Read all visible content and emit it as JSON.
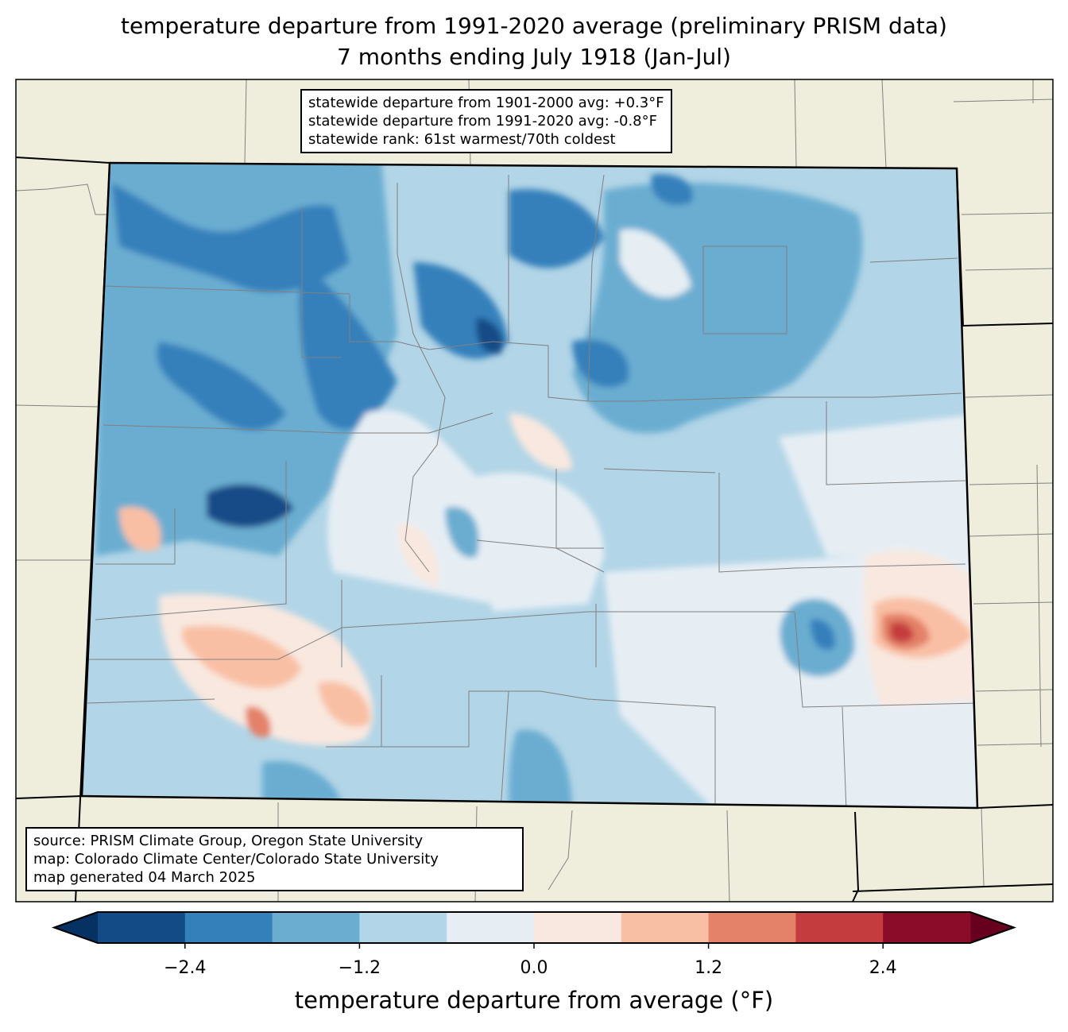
{
  "title": {
    "line1": "temperature departure from 1991-2020 average (preliminary PRISM data)",
    "line2": "7 months ending July 1918 (Jan-Jul)"
  },
  "stats": [
    "statewide departure from 1901-2000 avg: +0.3°F",
    "statewide departure from 1991-2020 avg: -0.8°F",
    "statewide rank: 61st warmest/70th coldest"
  ],
  "source": [
    "source: PRISM Climate Group, Oregon State University",
    "map: Colorado Climate Center/Colorado State University",
    "map generated 04 March 2025"
  ],
  "colorbar": {
    "label": "temperature departure from average (°F)",
    "ticks": [
      "−2.4",
      "−1.2",
      "0.0",
      "1.2",
      "2.4"
    ],
    "tick_values": [
      -2.4,
      -1.2,
      0,
      1.2,
      2.4
    ],
    "levels": [
      -3.0,
      -2.4,
      -1.8,
      -1.2,
      -0.6,
      0,
      0.6,
      1.2,
      1.8,
      2.4,
      3.0
    ],
    "colors": [
      "#134b87",
      "#3480bb",
      "#6badd1",
      "#b2d5e7",
      "#e6eef4",
      "#f9e8df",
      "#f9bfa4",
      "#e48169",
      "#c43c3d",
      "#8a0c29"
    ],
    "under": "#063163",
    "over": "#67001f"
  },
  "colors": {
    "land": "#efeedc",
    "border": "#000000",
    "county": "#808080"
  }
}
